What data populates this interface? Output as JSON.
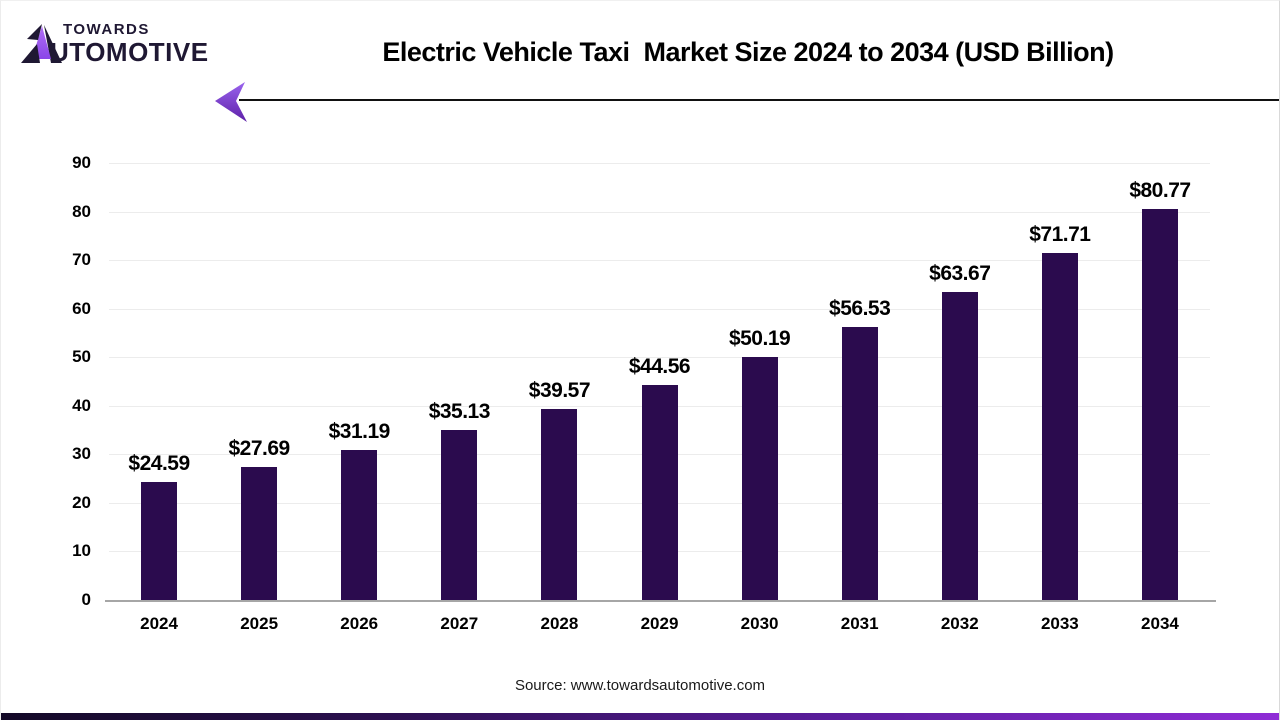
{
  "brand": {
    "line1": "TOWARDS",
    "line2": "AUTOMOTIVE",
    "line2_rest": "UTOMOTIVE",
    "dark_color": "#1f1833",
    "purple_color": "#a05df2"
  },
  "header": {
    "arrow_color_top": "#9a63ee",
    "arrow_color_bottom": "#5e21a8",
    "rule_color": "#111111"
  },
  "chart_data": {
    "type": "bar",
    "title": "Electric Vehicle Taxi  Market Size 2024 to 2034 (USD Billion)",
    "categories": [
      "2024",
      "2025",
      "2026",
      "2027",
      "2028",
      "2029",
      "2030",
      "2031",
      "2032",
      "2033",
      "2034"
    ],
    "values": [
      24.59,
      27.69,
      31.19,
      35.13,
      39.57,
      44.56,
      50.19,
      56.53,
      63.67,
      71.71,
      80.77
    ],
    "labels": [
      "$24.59",
      "$27.69",
      "$31.19",
      "$35.13",
      "$39.57",
      "$44.56",
      "$50.19",
      "$56.53",
      "$63.67",
      "$71.71",
      "$80.77"
    ],
    "xlabel": "",
    "ylabel": "",
    "ylim": [
      0,
      90
    ],
    "ytick_step": 10,
    "yticks": [
      0,
      10,
      20,
      30,
      40,
      50,
      60,
      70,
      80,
      90
    ],
    "grid": true,
    "legend": "none",
    "bar_color": "#2b0b4e",
    "gridline_color": "#ececec",
    "axis_line_color": "#a6a6a6"
  },
  "footer": {
    "source": "Source: www.towardsautomotive.com"
  }
}
